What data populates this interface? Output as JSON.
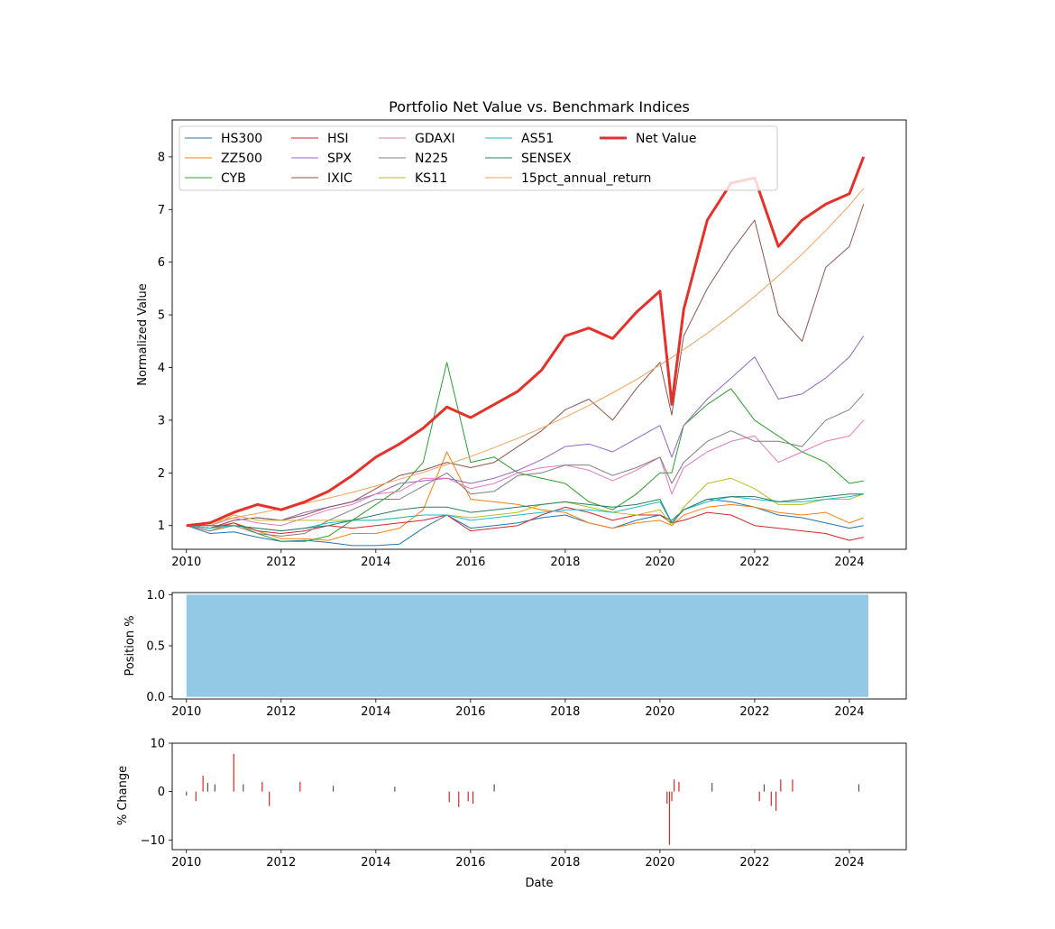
{
  "chart_data": [
    {
      "type": "line",
      "title": "Portfolio Net Value vs. Benchmark Indices",
      "xlabel": "",
      "ylabel": "Normalized Value",
      "xlim": [
        2009.7,
        2025.2
      ],
      "ylim": [
        0.55,
        8.7
      ],
      "x_ticks": [
        2010,
        2012,
        2014,
        2016,
        2018,
        2020,
        2022,
        2024
      ],
      "y_ticks": [
        1,
        2,
        3,
        4,
        5,
        6,
        7,
        8
      ],
      "legend_location": "top-left",
      "x": [
        2010.0,
        2010.5,
        2011.0,
        2011.5,
        2012.0,
        2012.5,
        2013.0,
        2013.5,
        2014.0,
        2014.5,
        2015.0,
        2015.5,
        2016.0,
        2016.5,
        2017.0,
        2017.5,
        2018.0,
        2018.5,
        2019.0,
        2019.5,
        2020.0,
        2020.25,
        2020.5,
        2021.0,
        2021.5,
        2022.0,
        2022.5,
        2023.0,
        2023.5,
        2024.0,
        2024.3
      ],
      "series": [
        {
          "name": "HS300",
          "color": "#1f77b4",
          "values": [
            1.0,
            0.85,
            0.88,
            0.78,
            0.7,
            0.72,
            0.68,
            0.62,
            0.62,
            0.65,
            0.95,
            1.2,
            0.95,
            1.0,
            1.05,
            1.15,
            1.2,
            1.05,
            0.95,
            1.1,
            1.2,
            1.1,
            1.3,
            1.5,
            1.45,
            1.35,
            1.2,
            1.15,
            1.05,
            0.95,
            1.0
          ]
        },
        {
          "name": "ZZ500",
          "color": "#ff7f0e",
          "values": [
            1.0,
            0.9,
            1.05,
            0.9,
            0.75,
            0.75,
            0.72,
            0.85,
            0.85,
            0.95,
            1.3,
            2.4,
            1.5,
            1.45,
            1.4,
            1.3,
            1.25,
            1.05,
            0.95,
            1.05,
            1.1,
            1.0,
            1.2,
            1.35,
            1.4,
            1.35,
            1.25,
            1.2,
            1.25,
            1.05,
            1.15
          ]
        },
        {
          "name": "CYB",
          "color": "#2ca02c",
          "values": [
            1.0,
            0.95,
            1.05,
            0.85,
            0.7,
            0.7,
            0.8,
            1.1,
            1.4,
            1.7,
            2.2,
            4.1,
            2.2,
            2.3,
            2.0,
            1.9,
            1.8,
            1.45,
            1.3,
            1.6,
            2.0,
            2.0,
            2.9,
            3.3,
            3.6,
            3.0,
            2.7,
            2.4,
            2.2,
            1.8,
            1.85
          ]
        },
        {
          "name": "HSI",
          "color": "#d62728",
          "values": [
            1.0,
            0.95,
            1.05,
            0.9,
            0.85,
            0.9,
            1.0,
            0.95,
            1.0,
            1.05,
            1.1,
            1.2,
            0.9,
            0.95,
            1.0,
            1.2,
            1.35,
            1.25,
            1.1,
            1.2,
            1.2,
            1.05,
            1.1,
            1.25,
            1.2,
            1.0,
            0.95,
            0.9,
            0.85,
            0.72,
            0.78
          ]
        },
        {
          "name": "SPX",
          "color": "#9467bd",
          "values": [
            1.0,
            0.95,
            1.1,
            1.15,
            1.1,
            1.25,
            1.35,
            1.45,
            1.6,
            1.8,
            1.85,
            1.9,
            1.8,
            1.9,
            2.05,
            2.25,
            2.5,
            2.55,
            2.4,
            2.65,
            2.9,
            2.3,
            2.9,
            3.4,
            3.8,
            4.2,
            3.4,
            3.5,
            3.8,
            4.2,
            4.6
          ]
        },
        {
          "name": "IXIC",
          "color": "#8c564b",
          "values": [
            1.0,
            0.95,
            1.1,
            1.15,
            1.1,
            1.2,
            1.35,
            1.45,
            1.7,
            1.95,
            2.05,
            2.2,
            2.1,
            2.2,
            2.5,
            2.8,
            3.2,
            3.4,
            3.0,
            3.6,
            4.1,
            3.1,
            4.6,
            5.5,
            6.2,
            6.8,
            5.0,
            4.5,
            5.9,
            6.3,
            7.1
          ]
        },
        {
          "name": "GDAXI",
          "color": "#e377c2",
          "values": [
            1.0,
            1.0,
            1.15,
            1.05,
            1.0,
            1.15,
            1.3,
            1.4,
            1.6,
            1.65,
            1.9,
            1.9,
            1.7,
            1.8,
            2.0,
            2.1,
            2.15,
            2.05,
            1.85,
            2.05,
            2.3,
            1.6,
            2.1,
            2.4,
            2.6,
            2.7,
            2.2,
            2.4,
            2.6,
            2.7,
            3.0
          ]
        },
        {
          "name": "N225",
          "color": "#7f7f7f",
          "values": [
            1.0,
            0.9,
            1.0,
            0.85,
            0.8,
            0.85,
            1.1,
            1.3,
            1.5,
            1.5,
            1.75,
            2.0,
            1.6,
            1.65,
            1.95,
            2.0,
            2.15,
            2.15,
            1.95,
            2.1,
            2.3,
            1.8,
            2.2,
            2.6,
            2.8,
            2.6,
            2.6,
            2.5,
            3.0,
            3.2,
            3.5
          ]
        },
        {
          "name": "KS11",
          "color": "#bcbd22",
          "values": [
            1.0,
            1.0,
            1.2,
            1.1,
            1.1,
            1.1,
            1.1,
            1.1,
            1.1,
            1.15,
            1.2,
            1.2,
            1.15,
            1.2,
            1.25,
            1.4,
            1.45,
            1.35,
            1.25,
            1.2,
            1.3,
            1.0,
            1.35,
            1.8,
            1.9,
            1.7,
            1.4,
            1.4,
            1.5,
            1.5,
            1.6
          ]
        },
        {
          "name": "AS51",
          "color": "#17becf",
          "values": [
            1.0,
            0.95,
            1.0,
            0.95,
            0.9,
            0.95,
            1.05,
            1.1,
            1.1,
            1.15,
            1.2,
            1.2,
            1.1,
            1.15,
            1.2,
            1.25,
            1.3,
            1.3,
            1.25,
            1.35,
            1.45,
            1.05,
            1.3,
            1.45,
            1.55,
            1.5,
            1.45,
            1.45,
            1.5,
            1.55,
            1.6
          ]
        },
        {
          "name": "SENSEX",
          "color": "#2a7f62",
          "values": [
            1.0,
            1.0,
            1.0,
            0.95,
            0.9,
            0.95,
            1.0,
            1.1,
            1.2,
            1.3,
            1.35,
            1.35,
            1.25,
            1.3,
            1.35,
            1.4,
            1.45,
            1.4,
            1.35,
            1.4,
            1.5,
            1.05,
            1.3,
            1.5,
            1.55,
            1.55,
            1.45,
            1.5,
            1.55,
            1.6,
            1.6
          ]
        },
        {
          "name": "15pct_annual_return",
          "color": "#f5a05a",
          "values": [
            1.0,
            1.07,
            1.15,
            1.23,
            1.32,
            1.42,
            1.52,
            1.63,
            1.75,
            1.88,
            2.01,
            2.16,
            2.31,
            2.48,
            2.66,
            2.85,
            3.06,
            3.28,
            3.52,
            3.77,
            4.05,
            4.19,
            4.34,
            4.65,
            4.99,
            5.35,
            5.74,
            6.15,
            6.6,
            7.08,
            7.4
          ]
        },
        {
          "name": "Net Value",
          "color": "#e8302a",
          "values": [
            1.0,
            1.05,
            1.25,
            1.4,
            1.3,
            1.45,
            1.65,
            1.95,
            2.3,
            2.55,
            2.85,
            3.25,
            3.05,
            3.3,
            3.55,
            3.95,
            4.6,
            4.75,
            4.55,
            5.05,
            5.45,
            3.3,
            5.1,
            6.8,
            7.5,
            7.6,
            6.3,
            6.8,
            7.1,
            7.3,
            8.0
          ]
        }
      ]
    },
    {
      "type": "area",
      "title": "",
      "xlabel": "",
      "ylabel": "Position %",
      "xlim": [
        2009.7,
        2025.2
      ],
      "ylim": [
        -0.02,
        1.02
      ],
      "x_ticks": [
        2010,
        2012,
        2014,
        2016,
        2018,
        2020,
        2022,
        2024
      ],
      "y_ticks": [
        0.0,
        0.5,
        1.0
      ],
      "y_tick_labels": [
        "0.0",
        "0.5",
        "1.0"
      ],
      "color": "#93c9e5",
      "x": [
        2010.0,
        2024.4
      ],
      "values": [
        1.0,
        1.0
      ]
    },
    {
      "type": "bar",
      "title": "",
      "xlabel": "Date",
      "ylabel": "% Change",
      "xlim": [
        2009.7,
        2025.2
      ],
      "ylim": [
        -12,
        10
      ],
      "x_ticks": [
        2010,
        2012,
        2014,
        2016,
        2018,
        2020,
        2022,
        2024
      ],
      "y_ticks": [
        10,
        0,
        -10
      ],
      "y_tick_labels": [
        "10",
        "0",
        "−10"
      ],
      "positive_color": "#555555",
      "highlight_color": "#d62728",
      "x": [
        2010.0,
        2010.2,
        2010.35,
        2010.45,
        2010.6,
        2011.0,
        2011.2,
        2011.6,
        2011.75,
        2012.4,
        2013.1,
        2014.4,
        2015.55,
        2015.75,
        2015.95,
        2016.05,
        2016.5,
        2020.15,
        2020.2,
        2020.25,
        2020.3,
        2020.4,
        2021.1,
        2022.1,
        2022.2,
        2022.35,
        2022.45,
        2022.55,
        2022.8,
        2024.2
      ],
      "values": [
        -0.8,
        -2.0,
        3.3,
        1.8,
        1.5,
        7.8,
        1.5,
        2.0,
        -3.0,
        2.0,
        1.2,
        1.0,
        -2.2,
        -3.2,
        -2.0,
        -2.5,
        1.5,
        -2.5,
        -11.0,
        -2.0,
        2.5,
        2.0,
        1.8,
        -2.0,
        1.5,
        -3.0,
        -4.0,
        2.5,
        2.5,
        1.5
      ]
    }
  ]
}
